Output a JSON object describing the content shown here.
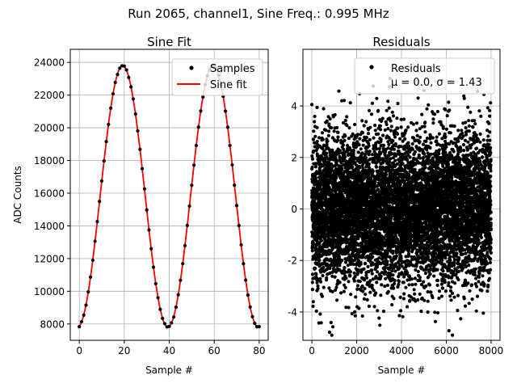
{
  "figure": {
    "suptitle": "Run 2065, channel1, Sine Freq.: 0.995 MHz"
  },
  "chart_data": [
    {
      "type": "line",
      "title": "Sine Fit",
      "xlabel": "Sample #",
      "ylabel": "ADC Counts",
      "xlim": [
        -4,
        84
      ],
      "ylim": [
        7000,
        24800
      ],
      "xticks": [
        0,
        20,
        40,
        60,
        80
      ],
      "yticks": [
        8000,
        10000,
        12000,
        14000,
        16000,
        18000,
        20000,
        22000,
        24000
      ],
      "grid": true,
      "legend_position": "upper-right",
      "sine_model": {
        "amplitude": 8000,
        "offset": 15800,
        "period_samples": 40.2,
        "phase_zero_sample": 9.25
      },
      "series": [
        {
          "name": "Samples",
          "style": "black-dots",
          "color": "#000000",
          "x_range": [
            0,
            80
          ],
          "step": 1
        },
        {
          "name": "Sine fit",
          "style": "line",
          "color": "#ff0000",
          "x_range": [
            0,
            80
          ]
        }
      ]
    },
    {
      "type": "scatter",
      "title": "Residuals",
      "xlabel": "Sample #",
      "xlim": [
        -400,
        8400
      ],
      "ylim": [
        -5.1,
        6.2
      ],
      "xticks": [
        0,
        2000,
        4000,
        6000,
        8000
      ],
      "yticks": [
        -4,
        -2,
        0,
        2,
        4
      ],
      "grid": true,
      "legend_position": "upper-right",
      "legend_entries": [
        "Residuals",
        "μ = 0.0, σ = 1.43"
      ],
      "series": [
        {
          "name": "Residuals",
          "color": "#000000",
          "n_points": 8000,
          "mean": 0.0,
          "sigma": 1.43,
          "min": -4.9,
          "max": 5.7
        }
      ]
    }
  ]
}
